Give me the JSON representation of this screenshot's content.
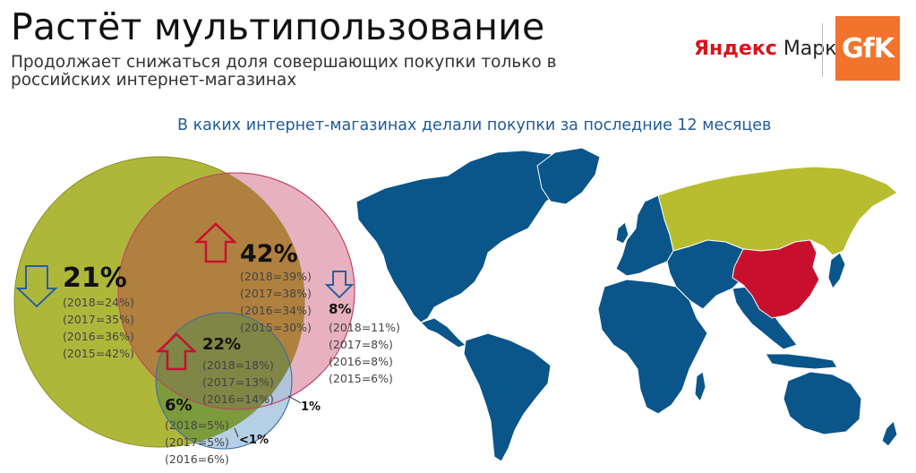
{
  "header": {
    "title": "Растёт мультипользование",
    "subtitle": "Продолжает снижаться доля совершающих покупки только в российских интернет-магазинах"
  },
  "logos": {
    "yandex_ya": "Яндекс",
    "yandex_market": "Маркет",
    "gfk": "GfK"
  },
  "question": "В каких интернет-магазинах делали покупки за последние 12 месяцев",
  "colors": {
    "russia": "#b7bd2e",
    "china": "#c8102e",
    "other": "#0a5589",
    "overlap_rc": "#b07a3a",
    "accent_title": "#1f5a9a"
  },
  "segments": {
    "russia_only": {
      "value": "21%",
      "trend": "down",
      "history": [
        "(2018=24%)",
        "(2017=35%)",
        "(2016=36%)",
        "(2015=42%)"
      ]
    },
    "russia_china": {
      "value": "42%",
      "trend": "up",
      "history": [
        "(2018=39%)",
        "(2017=38%)",
        "(2016=34%)",
        "(2015=30%)"
      ]
    },
    "china_only": {
      "value": "8%",
      "trend": "down",
      "history": [
        "(2018=11%)",
        "(2017=8%)",
        "(2016=8%)",
        "(2015=6%)"
      ]
    },
    "all_three": {
      "value": "22%",
      "trend": "up",
      "history": [
        "(2018=18%)",
        "(2017=13%)",
        "(2016=14%)"
      ]
    },
    "russia_other": {
      "value": "6%",
      "history": [
        "(2018=5%)",
        "(2017=5%)",
        "(2016=6%)"
      ]
    },
    "china_other": {
      "value": "1%"
    },
    "other_only": {
      "value": "<1%"
    }
  }
}
